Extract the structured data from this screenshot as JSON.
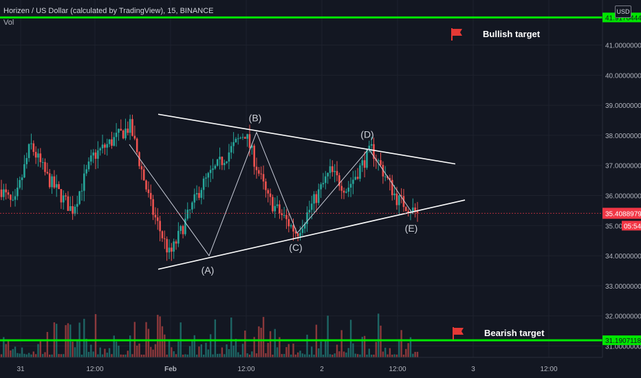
{
  "header": {
    "title": "Horizen / US Dollar (calculated by TradingView), 15, BINANCE",
    "volume_label": "Vol",
    "currency": "USD"
  },
  "colors": {
    "background": "#131722",
    "up": "#26a69a",
    "down": "#ef5350",
    "target_line": "#00e600",
    "flag": "#e53935",
    "price_tag": "#f23645",
    "pattern_line": "#ffffff"
  },
  "chart_data": {
    "type": "candlestick",
    "symbol": "ZENUSD",
    "exchange": "BINANCE",
    "interval": "15",
    "yaxis": {
      "ticks": [
        "41.0000000",
        "40.0000000",
        "39.0000000",
        "38.0000000",
        "37.0000000",
        "36.0000000",
        "35.0000000",
        "34.0000000",
        "33.0000000",
        "32.0000000",
        "31.0000000"
      ],
      "range": [
        30.85,
        42.2
      ]
    },
    "xaxis": {
      "ticks": [
        "31",
        "12:00",
        "Feb",
        "12:00",
        "2",
        "12:00",
        "3",
        "12:00"
      ]
    },
    "last_price": "35.4088979",
    "countdown": "05:54",
    "targets": [
      {
        "label": "Bullish target",
        "price": "41.9170444",
        "value": 41.917
      },
      {
        "label": "Bearish target",
        "price": "31.1907118",
        "value": 31.191
      }
    ],
    "wave_points": [
      {
        "label": "(A)",
        "value": 34.0
      },
      {
        "label": "(B)",
        "value": 38.1
      },
      {
        "label": "(C)",
        "value": 34.75
      },
      {
        "label": "(D)",
        "value": 37.55
      },
      {
        "label": "(E)",
        "value": 35.4
      }
    ],
    "pattern": "contracting triangle",
    "upper_trendline": [
      38.7,
      37.05
    ],
    "lower_trendline": [
      33.55,
      35.85
    ]
  }
}
